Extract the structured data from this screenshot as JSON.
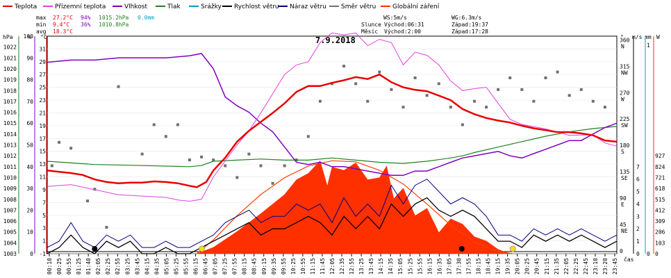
{
  "chart_data": {
    "type": "line",
    "title": "7.9.2018",
    "legend": [
      {
        "name": "Teplota",
        "color": "#e80000"
      },
      {
        "name": "Přízemní teplota",
        "color": "#e040e0"
      },
      {
        "name": "Vlhkost",
        "color": "#8000c0"
      },
      {
        "name": "Tlak",
        "color": "#208020"
      },
      {
        "name": "Srážky",
        "color": "#00a0c0"
      },
      {
        "name": "Rychlost větru",
        "color": "#000000"
      },
      {
        "name": "Náraz větru",
        "color": "#000080"
      },
      {
        "name": "Směr větru",
        "color": "#707070"
      },
      {
        "name": "Globální záření",
        "color": "#ff3000"
      }
    ],
    "stats": {
      "max_label": "max",
      "max_temp": "27.2°C",
      "max_hum": "94%",
      "max_press": "1015.2hPa",
      "max_rain": "0.0mm",
      "min_label": "min",
      "min_temp": "9.4°C",
      "min_hum": "36%",
      "min_press": "1010.8hPa",
      "avg_label": "avg",
      "avg_temp": "18.3°C",
      "ws": "WS:5m/s",
      "wg": "WG:6.3m/s",
      "sun_label": "Slunce",
      "sun_rise": "Východ:06:31",
      "sun_set": "Západ:19:37",
      "moon_label": "Měsíc",
      "moon_rise": "Východ:2:00",
      "moon_set": "Západ:17:28"
    },
    "axes": {
      "hpa": {
        "label": "hPa",
        "ticks": [
          "1022",
          "1021",
          "1020",
          "1019",
          "1018",
          "1017",
          "1016",
          "1015",
          "1014",
          "1013",
          "1012",
          "1011",
          "1010",
          "1009",
          "1008",
          "1007",
          "1006",
          "1005",
          "1004",
          "1003"
        ],
        "color": "#208020"
      },
      "pct": {
        "label": "%",
        "ticks": [
          "100",
          "90",
          "80",
          "70",
          "60",
          "50",
          "40",
          "30",
          "20",
          "10",
          "0"
        ],
        "color": "#8000c0"
      },
      "temp": {
        "label": "°C",
        "ticks": [
          "31",
          "29",
          "27",
          "25",
          "23",
          "21",
          "19",
          "17",
          "15",
          "13",
          "11",
          "9",
          "7",
          "5",
          "3",
          "1",
          "-1"
        ],
        "ylim": [
          -1,
          33
        ],
        "color": "#e80000"
      },
      "dir": {
        "label": "°",
        "ticks": [
          "360",
          "315",
          "270",
          "225",
          "180",
          "135",
          "90",
          "45",
          "0"
        ],
        "names": [
          "N",
          "NW",
          "W",
          "SW",
          "S",
          "SE",
          "E",
          "NE",
          ""
        ]
      },
      "ms": {
        "label": "m/s",
        "ticks": [
          "7",
          "6",
          "5",
          "4",
          "3",
          "2",
          "1",
          "0"
        ]
      },
      "mm": {
        "label": "mm",
        "ticks": [
          "1",
          "0"
        ],
        "color": "#00a0c0"
      },
      "w": {
        "label": "W",
        "ticks": [
          "927",
          "824",
          "721",
          "618",
          "515",
          "412",
          "309",
          "206",
          "103",
          "0"
        ],
        "color": "#ff3000"
      },
      "x_label": "čas"
    },
    "x_ticks": [
      "00:10",
      "00:25",
      "00:55",
      "01:25",
      "01:40",
      "02:05",
      "02:25",
      "02:55",
      "03:25",
      "03:45",
      "04:15",
      "04:35",
      "05:05",
      "05:25",
      "05:55",
      "06:15",
      "06:45",
      "07:05",
      "07:25",
      "07:55",
      "08:15",
      "08:45",
      "09:15",
      "09:35",
      "09:55",
      "10:25",
      "10:55",
      "11:15",
      "11:45",
      "12:05",
      "12:35",
      "12:55",
      "13:25",
      "13:45",
      "14:15",
      "14:35",
      "15:05",
      "15:25",
      "15:55",
      "16:15",
      "16:35",
      "17:05",
      "17:30",
      "17:55",
      "18:15",
      "18:45",
      "19:15",
      "19:35",
      "20:05",
      "20:25",
      "20:45",
      "21:15",
      "21:35",
      "22:05",
      "22:25",
      "22:45",
      "23:10",
      "23:20",
      "23:45"
    ],
    "temp_series": {
      "x_hours": [
        0,
        0.5,
        1,
        1.5,
        2,
        2.5,
        3,
        3.5,
        4,
        4.5,
        5,
        5.5,
        6,
        6.3,
        6.7,
        7,
        7.5,
        8,
        8.5,
        9,
        9.5,
        10,
        10.5,
        11,
        11.5,
        12,
        12.5,
        13,
        13.5,
        14,
        14.5,
        15,
        15.5,
        16,
        16.5,
        17,
        17.5,
        18,
        18.5,
        19,
        19.5,
        20,
        20.5,
        21,
        21.5,
        22,
        22.5,
        23,
        23.5,
        24
      ],
      "values": [
        12,
        11.8,
        11.6,
        11.3,
        10.6,
        10.2,
        10,
        10.1,
        10.1,
        10.3,
        10.2,
        10,
        9.6,
        9.4,
        10.2,
        12,
        14,
        16.5,
        18.2,
        19.6,
        21,
        22.5,
        24.3,
        25.2,
        25.2,
        25.7,
        26.1,
        26.6,
        26.3,
        27,
        25.8,
        25,
        24.6,
        24.4,
        23.7,
        23,
        21.6,
        20.8,
        20.2,
        19.8,
        19.5,
        19,
        18.6,
        18.3,
        18,
        18,
        17.8,
        17.5,
        16.7,
        16.5
      ]
    },
    "ground_temp": {
      "x_hours": [
        0,
        1,
        2,
        3,
        4,
        5,
        5.5,
        6,
        6.5,
        7,
        7.5,
        8,
        8.5,
        9,
        9.5,
        10,
        10.5,
        11,
        11.5,
        12,
        12.5,
        13,
        13.5,
        14,
        14.5,
        15,
        15.5,
        16,
        16.5,
        17,
        17.5,
        18,
        18.5,
        19,
        19.5,
        20,
        21,
        22,
        23,
        23.5,
        24
      ],
      "values": [
        9.5,
        9.8,
        9,
        8.2,
        8,
        7.8,
        7.4,
        7.2,
        7.5,
        11,
        13.5,
        16,
        18.2,
        21,
        24,
        27,
        28.5,
        29,
        32,
        33.5,
        33.2,
        33.5,
        31.5,
        32.5,
        32,
        28.5,
        30.5,
        30,
        28.5,
        26,
        24.5,
        24.8,
        25,
        22.5,
        20,
        19.2,
        18.5,
        17.5,
        17.6,
        16.3,
        15.8
      ]
    },
    "humidity": {
      "x_hours": [
        0,
        1,
        2,
        3,
        4,
        5,
        6,
        6.5,
        7,
        7.5,
        8,
        8.5,
        9,
        9.5,
        10,
        10.5,
        11,
        11.5,
        12,
        12.5,
        13,
        13.5,
        14,
        14.5,
        15,
        15.5,
        16,
        16.5,
        17,
        17.5,
        18,
        18.5,
        19,
        19.5,
        20,
        20.5,
        21,
        21.5,
        22,
        22.5,
        23,
        23.5,
        24
      ],
      "values": [
        88,
        89,
        89,
        90,
        90,
        90,
        91,
        92,
        85,
        72,
        68,
        65,
        60,
        56,
        49,
        42,
        41,
        42,
        40,
        40,
        39,
        38,
        37,
        36,
        36,
        38,
        38,
        40,
        42,
        44,
        45,
        46,
        47,
        45,
        44,
        46,
        48,
        50,
        52,
        52,
        55,
        58,
        60
      ]
    },
    "pressure": {
      "x_hours": [
        0,
        2,
        4,
        6,
        6.5,
        7,
        8,
        9,
        10,
        11,
        12,
        13,
        14,
        15,
        16,
        17,
        17.5,
        18,
        19,
        20,
        21,
        22,
        23,
        24
      ],
      "values": [
        1011.5,
        1011.2,
        1011.1,
        1011,
        1011.1,
        1011.5,
        1011.6,
        1011.7,
        1011.6,
        1011.6,
        1011.8,
        1011.6,
        1011.4,
        1011.3,
        1011.5,
        1011.8,
        1012,
        1012.3,
        1012.8,
        1013.3,
        1013.8,
        1014.2,
        1014.5,
        1014.7
      ]
    },
    "wind_speed": {
      "x_hours": [
        0,
        0.5,
        1,
        1.5,
        2,
        2.5,
        3,
        3.5,
        4,
        4.5,
        5,
        5.5,
        6,
        6.5,
        7,
        7.5,
        8,
        8.5,
        9,
        9.5,
        10,
        10.5,
        11,
        11.5,
        12,
        12.5,
        13,
        13.5,
        14,
        14.5,
        15,
        15.5,
        16,
        16.5,
        17,
        17.5,
        18,
        18.5,
        19,
        19.5,
        20,
        20.5,
        21,
        21.5,
        22,
        22.5,
        23,
        23.5,
        24
      ],
      "values": [
        0,
        0.5,
        1.5,
        0.5,
        0,
        1,
        0.5,
        1,
        0,
        0,
        0.5,
        0,
        0,
        0.5,
        1,
        1.5,
        2,
        2.5,
        1.5,
        2,
        2,
        2.5,
        3,
        2.5,
        1.5,
        3,
        2,
        3,
        2,
        4,
        3,
        4,
        4.5,
        3.5,
        3,
        3.5,
        3,
        2,
        1,
        1,
        0.5,
        1.5,
        1,
        1.5,
        1,
        1.5,
        1,
        0.5,
        1
      ]
    },
    "wind_gust": {
      "x_hours": [
        0,
        0.5,
        1,
        1.5,
        2,
        2.5,
        3,
        3.5,
        4,
        4.5,
        5,
        5.5,
        6,
        6.5,
        7,
        7.5,
        8,
        8.5,
        9,
        9.5,
        10,
        10.5,
        11,
        11.5,
        12,
        12.5,
        13,
        13.5,
        14,
        14.5,
        15,
        15.5,
        16,
        16.5,
        17,
        17.5,
        18,
        18.5,
        19,
        19.5,
        20,
        20.5,
        21,
        21.5,
        22,
        22.5,
        23,
        23.5,
        24
      ],
      "values": [
        0.5,
        1,
        2.5,
        1,
        0.5,
        1.5,
        1,
        1.5,
        0.5,
        0.5,
        1,
        0.5,
        0.5,
        1,
        1.5,
        2.5,
        3,
        3.5,
        2.5,
        3,
        3,
        4,
        3.5,
        4,
        2.5,
        4.5,
        3,
        4,
        3,
        5.5,
        4,
        5.5,
        6,
        5,
        4,
        4.5,
        4,
        3,
        1.5,
        1.5,
        1,
        2,
        1.5,
        2,
        1.5,
        2,
        1.5,
        1,
        1.5
      ]
    },
    "wind_dir": {
      "x_hours": [
        0.2,
        0.5,
        1,
        1.7,
        2,
        2.5,
        3,
        4,
        4.5,
        5,
        5.5,
        6,
        6.5,
        7,
        7.5,
        8,
        8.5,
        9,
        9.5,
        10,
        10.5,
        11,
        11.5,
        12,
        12.5,
        13,
        13.5,
        14,
        14.5,
        15,
        15.5,
        16,
        16.5,
        17,
        17.5,
        18,
        18.5,
        19,
        19.5,
        20,
        20.5,
        21,
        21.5,
        22,
        22.5,
        23,
        23.5
      ],
      "values": [
        150,
        190,
        180,
        90,
        110,
        45,
        285,
        170,
        220,
        200,
        220,
        160,
        165,
        160,
        150,
        130,
        170,
        150,
        120,
        150,
        160,
        200,
        260,
        290,
        320,
        290,
        260,
        310,
        280,
        250,
        300,
        270,
        290,
        250,
        220,
        260,
        250,
        280,
        300,
        280,
        260,
        300,
        310,
        270,
        280,
        260,
        250
      ]
    },
    "radiation": {
      "x_hours": [
        6.3,
        7,
        8,
        9,
        10,
        10.5,
        11,
        11.5,
        11.8,
        12,
        12.5,
        13,
        13.5,
        14,
        14.3,
        14.6,
        15,
        15.5,
        16,
        16.5,
        17,
        17.5,
        18,
        18.5,
        19,
        19.5
      ],
      "values": [
        0,
        60,
        210,
        380,
        560,
        700,
        760,
        880,
        640,
        820,
        790,
        860,
        700,
        720,
        830,
        520,
        620,
        360,
        430,
        200,
        330,
        280,
        160,
        120,
        40,
        0
      ]
    },
    "sun_curve": {
      "x_hours": [
        6.3,
        7,
        8,
        9,
        10,
        11,
        12,
        13,
        14,
        15,
        16,
        17,
        18,
        19,
        19.6
      ],
      "values": [
        0,
        130,
        360,
        560,
        720,
        830,
        880,
        870,
        790,
        660,
        470,
        270,
        110,
        20,
        0
      ]
    },
    "markers": {
      "moon_rise": "2:00",
      "sun_rise": "06:31",
      "moon_set": "17:28",
      "sun_set": "19:37"
    }
  }
}
